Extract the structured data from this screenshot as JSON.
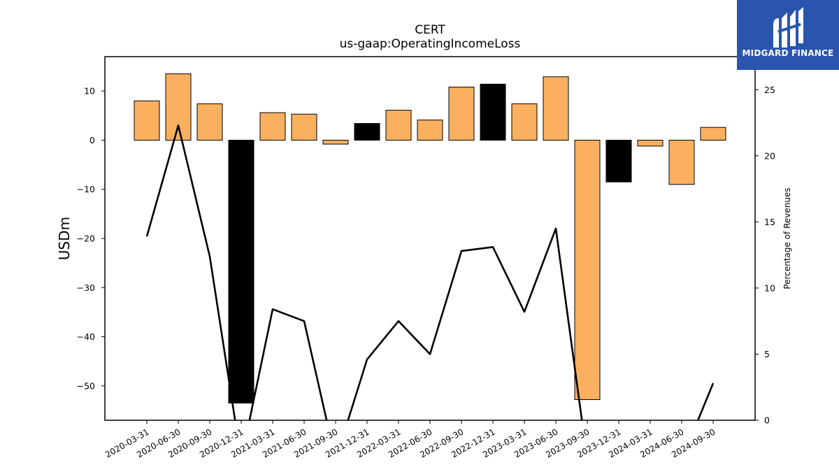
{
  "chart_data": {
    "type": "bar",
    "title": "CERT",
    "subtitle": "us-gaap:OperatingIncomeLoss",
    "ylabel": "USDm",
    "y2label": "Percentage of Revenues",
    "ylim": [
      -57,
      17
    ],
    "y2lim": [
      0,
      27.5
    ],
    "yticks": [
      10,
      0,
      -10,
      -20,
      -30,
      -40,
      -50
    ],
    "y2ticks": [
      25,
      20,
      15,
      10,
      5,
      0
    ],
    "categories": [
      "2020-03-31",
      "2020-06-30",
      "2020-09-30",
      "2020-12-31",
      "2021-03-31",
      "2021-06-30",
      "2021-09-30",
      "2021-12-31",
      "2022-03-31",
      "2022-06-30",
      "2022-09-30",
      "2022-12-31",
      "2023-03-31",
      "2023-06-30",
      "2023-09-30",
      "2023-12-31",
      "2024-03-31",
      "2024-06-30",
      "2024-09-30"
    ],
    "series": [
      {
        "type": "bar",
        "values": [
          8.0,
          13.5,
          7.4,
          -53.5,
          5.6,
          5.3,
          -0.8,
          3.4,
          6.1,
          4.1,
          10.8,
          11.4,
          7.4,
          12.9,
          -52.8,
          -8.5,
          -1.2,
          -9.0,
          2.6
        ],
        "highlight": [
          false,
          false,
          false,
          true,
          false,
          false,
          false,
          true,
          false,
          false,
          false,
          true,
          false,
          false,
          false,
          true,
          false,
          false,
          false
        ]
      },
      {
        "type": "line",
        "axis": "right",
        "values": [
          13.9,
          22.3,
          12.4,
          null,
          8.4,
          7.5,
          null,
          4.6,
          7.5,
          5.0,
          12.8,
          13.1,
          8.2,
          14.5,
          null,
          null,
          null,
          null,
          2.8
        ]
      }
    ],
    "colors": {
      "bar": "#fbb05f",
      "bar_highlight": "#000000",
      "line": "#000000"
    }
  },
  "logo": {
    "text": "MIDGARD FINANCE"
  }
}
